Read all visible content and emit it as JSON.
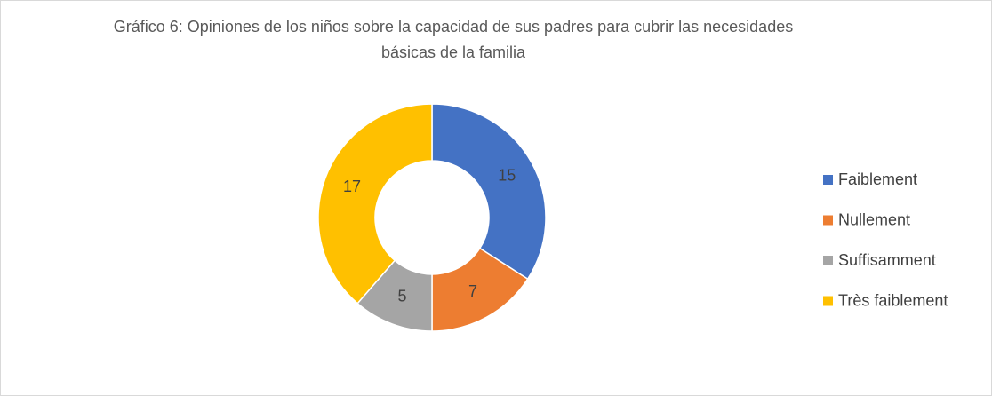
{
  "chart_data": {
    "type": "donut",
    "title": "Gráfico 6: Opiniones de los niños sobre la capacidad de sus padres para cubrir las necesidades básicas de la familia",
    "categories": [
      "Faiblement",
      "Nullement",
      "Suffisamment",
      "Très faiblement"
    ],
    "values": [
      15,
      7,
      5,
      17
    ],
    "colors": [
      "#4472c4",
      "#ed7d31",
      "#a5a5a5",
      "#ffc000"
    ],
    "legend": "right"
  }
}
